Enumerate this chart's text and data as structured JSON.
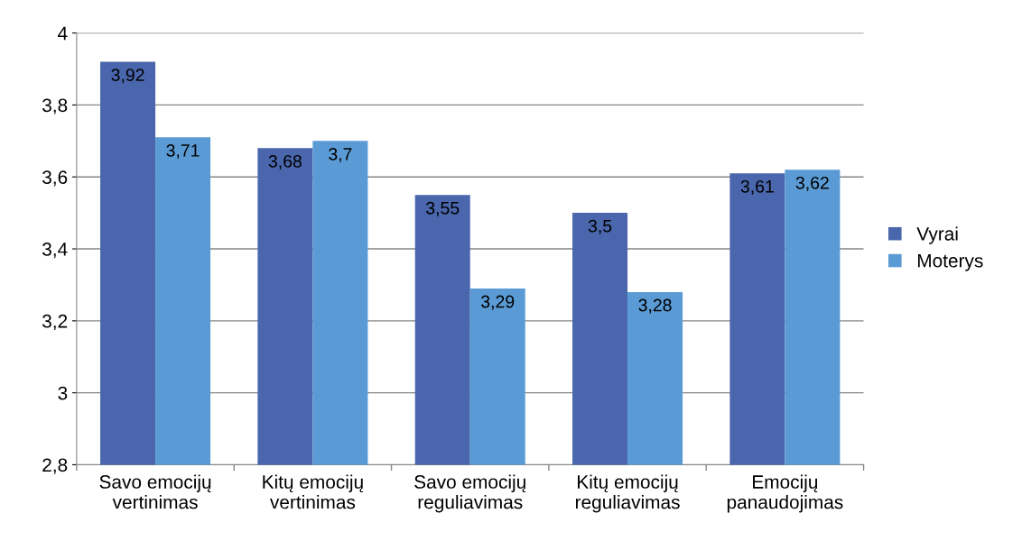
{
  "chart_data": {
    "type": "bar",
    "categories": [
      "Savo emocijų\nvertinimas",
      "Kitų emocijų\nvertinimas",
      "Savo emocijų\nreguliavimas",
      "Kitų emocijų\nreguliavimas",
      "Emocijų\npanaudojimas"
    ],
    "series": [
      {
        "name": "Vyrai",
        "color": "#4a66ac",
        "values": [
          3.92,
          3.68,
          3.55,
          3.5,
          3.61
        ],
        "value_labels": [
          "3,92",
          "3,68",
          "3,55",
          "3,5",
          "3,61"
        ]
      },
      {
        "name": "Moterys",
        "color": "#5b9bd5",
        "values": [
          3.71,
          3.7,
          3.29,
          3.28,
          3.62
        ],
        "value_labels": [
          "3,71",
          "3,7",
          "3,29",
          "3,28",
          "3,62"
        ]
      }
    ],
    "ylim": [
      2.8,
      4
    ],
    "yticks": [
      {
        "value": 2.8,
        "label": "2,8"
      },
      {
        "value": 3,
        "label": "3"
      },
      {
        "value": 3.2,
        "label": "3,2"
      },
      {
        "value": 3.4,
        "label": "3,4"
      },
      {
        "value": 3.6,
        "label": "3,6"
      },
      {
        "value": 3.8,
        "label": "3,8"
      },
      {
        "value": 4,
        "label": "4"
      }
    ],
    "grid": "y",
    "legend": "right"
  }
}
